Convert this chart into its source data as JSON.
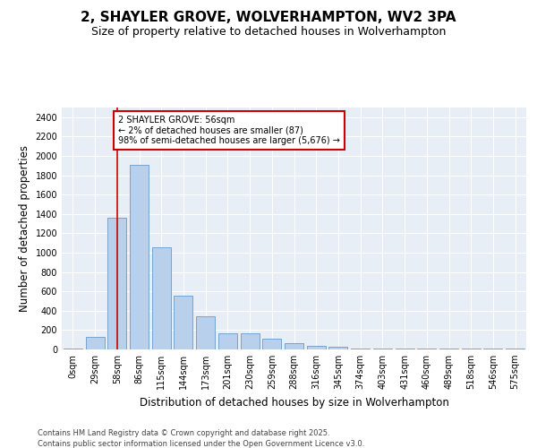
{
  "title_line1": "2, SHAYLER GROVE, WOLVERHAMPTON, WV2 3PA",
  "title_line2": "Size of property relative to detached houses in Wolverhampton",
  "xlabel": "Distribution of detached houses by size in Wolverhampton",
  "ylabel": "Number of detached properties",
  "categories": [
    "0sqm",
    "29sqm",
    "58sqm",
    "86sqm",
    "115sqm",
    "144sqm",
    "173sqm",
    "201sqm",
    "230sqm",
    "259sqm",
    "288sqm",
    "316sqm",
    "345sqm",
    "374sqm",
    "403sqm",
    "431sqm",
    "460sqm",
    "489sqm",
    "518sqm",
    "546sqm",
    "575sqm"
  ],
  "values": [
    10,
    130,
    1360,
    1910,
    1055,
    560,
    340,
    170,
    165,
    110,
    65,
    40,
    30,
    5,
    5,
    5,
    5,
    5,
    5,
    5,
    10
  ],
  "bar_color": "#b8d0eb",
  "bar_edge_color": "#6699cc",
  "redline_x": 2.0,
  "annotation_text": "2 SHAYLER GROVE: 56sqm\n← 2% of detached houses are smaller (87)\n98% of semi-detached houses are larger (5,676) →",
  "annotation_box_color": "#ffffff",
  "annotation_box_edge": "#cc0000",
  "redline_color": "#cc0000",
  "ylim": [
    0,
    2500
  ],
  "yticks": [
    0,
    200,
    400,
    600,
    800,
    1000,
    1200,
    1400,
    1600,
    1800,
    2000,
    2200,
    2400
  ],
  "plot_bg_color": "#e8eef5",
  "fig_bg_color": "#ffffff",
  "grid_color": "#ffffff",
  "footer_line1": "Contains HM Land Registry data © Crown copyright and database right 2025.",
  "footer_line2": "Contains public sector information licensed under the Open Government Licence v3.0.",
  "title_fontsize": 11,
  "subtitle_fontsize": 9,
  "tick_fontsize": 7,
  "label_fontsize": 8.5,
  "annot_fontsize": 7,
  "footer_fontsize": 6
}
